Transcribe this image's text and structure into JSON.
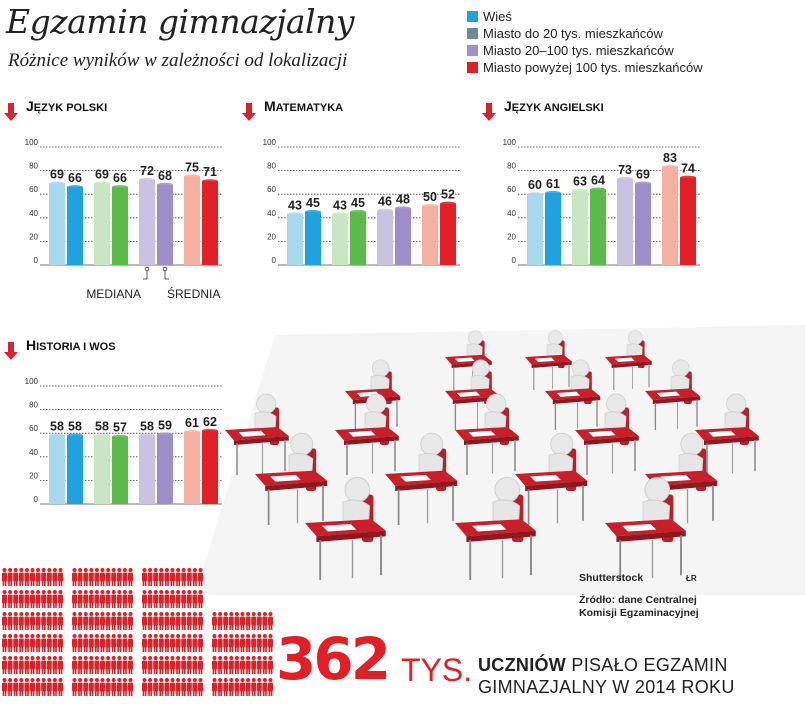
{
  "title": "Egzamin gimnazjalny",
  "subtitle": "Różnice wyników w zależności od lokalizacji",
  "legend": [
    {
      "label": "Wieś",
      "color": "#1fa3e0"
    },
    {
      "label": "Miasto do 20 tys. mieszkańców",
      "color": "#6a8a94"
    },
    {
      "label": "Miasto 20–100 tys. mieszkańców",
      "color": "#a090cc"
    },
    {
      "label": "Miasto powyżej 100 tys. mieszkańców",
      "color": "#e01f26"
    }
  ],
  "chart_data": [
    {
      "type": "bar",
      "title": "Język polski",
      "y_ticks": [
        0,
        20,
        40,
        60,
        80,
        100
      ],
      "ylim": [
        0,
        100
      ],
      "groups": [
        "Wieś",
        "Miasto do 20 tys. mieszkańców",
        "Miasto 20–100 tys. mieszkańców",
        "Miasto powyżej 100 tys. mieszkańców"
      ],
      "series": [
        {
          "name": "Mediana",
          "values": [
            69,
            69,
            72,
            75
          ]
        },
        {
          "name": "Średnia",
          "values": [
            66,
            66,
            68,
            71
          ]
        }
      ],
      "annotations": [
        "MEDIANA",
        "ŚREDNIA"
      ]
    },
    {
      "type": "bar",
      "title": "Matematyka",
      "y_ticks": [
        0,
        20,
        40,
        60,
        80,
        100
      ],
      "ylim": [
        0,
        100
      ],
      "groups": [
        "Wieś",
        "Miasto do 20 tys. mieszkańców",
        "Miasto 20–100 tys. mieszkańców",
        "Miasto powyżej 100 tys. mieszkańców"
      ],
      "series": [
        {
          "name": "Mediana",
          "values": [
            43,
            43,
            46,
            50
          ]
        },
        {
          "name": "Średnia",
          "values": [
            45,
            45,
            48,
            52
          ]
        }
      ]
    },
    {
      "type": "bar",
      "title": "Język angielski",
      "y_ticks": [
        0,
        20,
        40,
        60,
        80,
        100
      ],
      "ylim": [
        0,
        100
      ],
      "groups": [
        "Wieś",
        "Miasto do 20 tys. mieszkańców",
        "Miasto 20–100 tys. mieszkańców",
        "Miasto powyżej 100 tys. mieszkańców"
      ],
      "series": [
        {
          "name": "Mediana",
          "values": [
            60,
            63,
            73,
            83
          ]
        },
        {
          "name": "Średnia",
          "values": [
            61,
            64,
            69,
            74
          ]
        }
      ]
    },
    {
      "type": "bar",
      "title": "Historia i WOS",
      "y_ticks": [
        0,
        20,
        40,
        60,
        80,
        100
      ],
      "ylim": [
        0,
        100
      ],
      "groups": [
        "Wieś",
        "Miasto do 20 tys. mieszkańców",
        "Miasto 20–100 tys. mieszkańców",
        "Miasto powyżej 100 tys. mieszkańców"
      ],
      "series": [
        {
          "name": "Mediana",
          "values": [
            58,
            58,
            58,
            61
          ]
        },
        {
          "name": "Średnia",
          "values": [
            58,
            57,
            59,
            62
          ]
        }
      ]
    }
  ],
  "bar_colors": {
    "median": [
      "#a8d8f0",
      "#c9e6c2",
      "#c9c2e2",
      "#f4b1a2"
    ],
    "mean": [
      "#1fa3e0",
      "#5aba4a",
      "#9d8ecb",
      "#e01f26"
    ]
  },
  "credit": "Shutterstock",
  "credit_initials": "ŁR",
  "source": "Źródło: dane Centralnej Komisji Egzaminacyjnej",
  "big_number": "362",
  "big_unit": "TYS.",
  "caption_bold": "UCZNIÓW",
  "caption_line1": " PISAŁO EGZAMIN",
  "caption_line2": "GIMNAZJALNY W 2014 ROKU"
}
